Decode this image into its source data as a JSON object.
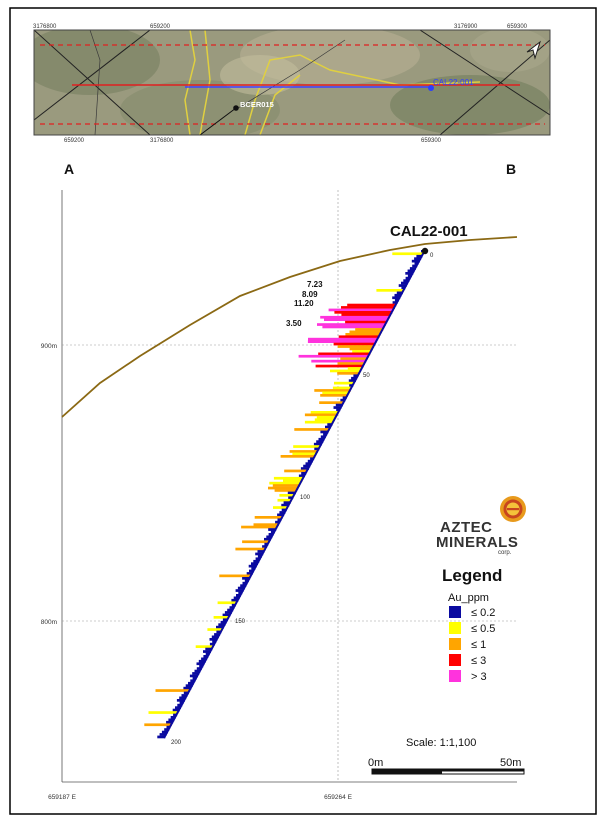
{
  "map_inset": {
    "top_coords": [
      "3176800",
      "659200",
      "3176900",
      "659300"
    ],
    "bottom_coords": [
      "659200",
      "3176800",
      "659300"
    ],
    "drill_label": "CAL22-001",
    "other_hole_label": "BCER015",
    "north_icon": "north-arrow-icon"
  },
  "section": {
    "end_a": "A",
    "end_b": "B",
    "hole_title": "CAL22-001",
    "elev_labels": [
      "900m",
      "800m"
    ],
    "easting_labels": [
      "659187 E",
      "659264 E"
    ],
    "depth_labels": [
      "0",
      "50",
      "100",
      "150",
      "200"
    ],
    "high_grade_values": [
      "7.23",
      "8.09",
      "11.20",
      "3.50"
    ],
    "scale_text": "Scale: 1:1,100",
    "scalebar_start": "0m",
    "scalebar_end": "50m",
    "topo_color": "#8B6914"
  },
  "logo": {
    "line1": "AZTEC",
    "line2": "MINERALS",
    "line3": "corp."
  },
  "legend": {
    "title": "Legend",
    "subtitle": "Au_ppm",
    "items": [
      {
        "label": "≤ 0.2",
        "color": "#0A0AA0"
      },
      {
        "label": "≤ 0.5",
        "color": "#FFFF00"
      },
      {
        "label": "≤ 1",
        "color": "#FFA500"
      },
      {
        "label": "≤ 3",
        "color": "#FF0000"
      },
      {
        "label": "> 3",
        "color": "#FF33DD"
      }
    ]
  }
}
